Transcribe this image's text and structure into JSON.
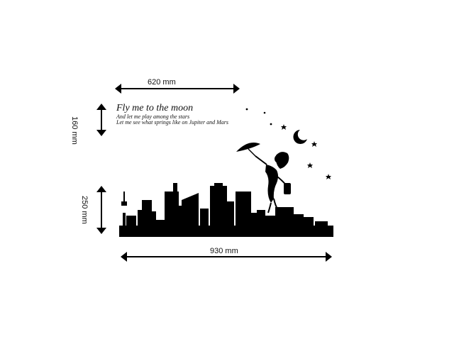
{
  "dimensions": {
    "top_width": "620 mm",
    "left_height_text": "160 mm",
    "left_height_skyline": "250 mm",
    "bottom_width": "930 mm"
  },
  "poem": {
    "line1": "Fly me to the moon",
    "line2": "And let me play among the stars",
    "line3": "Let me see what springs like on Jupiter and Mars"
  }
}
